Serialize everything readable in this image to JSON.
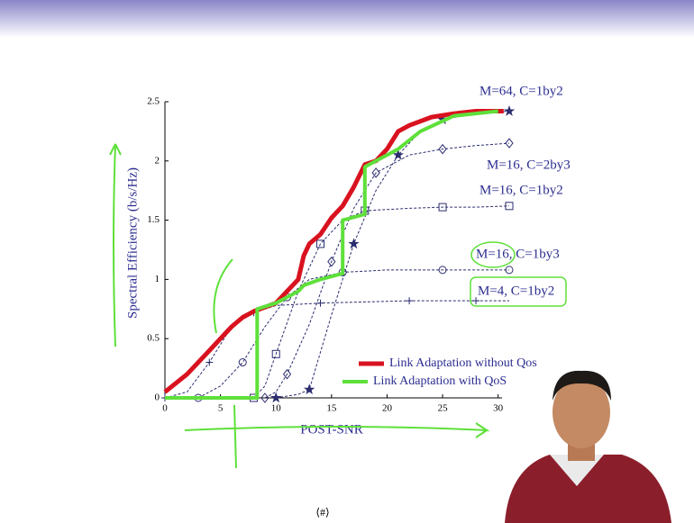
{
  "chart_data": {
    "type": "line",
    "xlabel": "POST-SNR",
    "ylabel": "Spectral Efficiency (b/s/Hz)",
    "xlim": [
      0,
      31
    ],
    "ylim": [
      0,
      2.5
    ],
    "xticks": [
      0,
      5,
      10,
      15,
      20,
      25,
      30
    ],
    "yticks": [
      0,
      0.5,
      1,
      1.5,
      2,
      2.5
    ],
    "series": [
      {
        "name": "M=64, C=1by2",
        "color": "#2b2d6f",
        "marker": "star",
        "dashed": true,
        "x": [
          10,
          12,
          13,
          15,
          17,
          19,
          21,
          23,
          25,
          28,
          31
        ],
        "values": [
          0,
          0.03,
          0.07,
          0.7,
          1.3,
          1.75,
          2.05,
          2.25,
          2.35,
          2.4,
          2.42
        ]
      },
      {
        "name": "M=16, C=2by3",
        "color": "#2b2d6f",
        "marker": "diamond",
        "dashed": true,
        "x": [
          9,
          10,
          11,
          13,
          15,
          17,
          19,
          22,
          25,
          28,
          31
        ],
        "values": [
          0,
          0.05,
          0.2,
          0.62,
          1.15,
          1.6,
          1.9,
          2.05,
          2.1,
          2.13,
          2.15
        ]
      },
      {
        "name": "M=16, C=1by2",
        "color": "#2b2d6f",
        "marker": "square",
        "dashed": true,
        "x": [
          8,
          9,
          10,
          12,
          14,
          16,
          18,
          22,
          25,
          28,
          31
        ],
        "values": [
          0,
          0.1,
          0.37,
          0.9,
          1.3,
          1.5,
          1.58,
          1.6,
          1.61,
          1.61,
          1.62
        ]
      },
      {
        "name": "M=16, C=1by3",
        "color": "#2b2d6f",
        "marker": "circle",
        "dashed": true,
        "x": [
          3,
          5,
          7,
          9,
          11,
          13,
          16,
          20,
          25,
          28,
          31
        ],
        "values": [
          0,
          0.1,
          0.3,
          0.6,
          0.85,
          1.0,
          1.06,
          1.08,
          1.08,
          1.08,
          1.08
        ]
      },
      {
        "name": "M=4, C=1by2",
        "color": "#2b2d6f",
        "marker": "plus",
        "dashed": true,
        "x": [
          0,
          2,
          4,
          6,
          8,
          10,
          14,
          18,
          22,
          26,
          28,
          31
        ],
        "values": [
          0,
          0.05,
          0.3,
          0.6,
          0.72,
          0.78,
          0.8,
          0.81,
          0.82,
          0.82,
          0.82,
          0.82
        ]
      },
      {
        "name": "Link Adaptation without Qos",
        "color": "#d9121f",
        "width": 5,
        "x": [
          0,
          2,
          4,
          6,
          7,
          8,
          10,
          11,
          12,
          12.5,
          13,
          14,
          15,
          16,
          17,
          18,
          19,
          20,
          21,
          22,
          24,
          26,
          28,
          30.5
        ],
        "values": [
          0.05,
          0.2,
          0.4,
          0.6,
          0.68,
          0.73,
          0.8,
          0.9,
          1.0,
          1.2,
          1.3,
          1.38,
          1.52,
          1.62,
          1.78,
          1.97,
          2.0,
          2.1,
          2.25,
          2.3,
          2.37,
          2.4,
          2.42,
          2.42
        ]
      },
      {
        "name": "Link Adaptation with QoS",
        "color": "#5ee03a",
        "width": 4,
        "x": [
          0,
          8.3,
          8.3,
          10,
          12,
          12.5,
          14,
          16,
          16,
          18,
          18,
          19,
          21,
          23,
          26,
          30
        ],
        "values": [
          0,
          0,
          0.75,
          0.8,
          0.9,
          0.95,
          1.0,
          1.05,
          1.5,
          1.55,
          1.95,
          2.0,
          2.1,
          2.25,
          2.38,
          2.42
        ]
      }
    ]
  },
  "footer": "⟨#⟩"
}
